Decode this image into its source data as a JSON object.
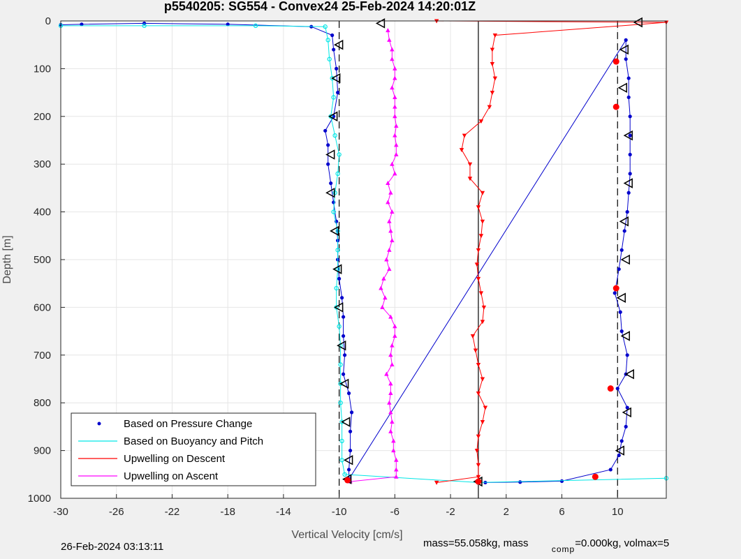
{
  "chart_data": {
    "type": "scatter",
    "title": "p5540205: SG554 - Convex24 25-Feb-2024 14:20:01Z",
    "xlabel": "Vertical Velocity [cm/s]",
    "ylabel": "Depth [m]",
    "xlim": [
      -30,
      13.5
    ],
    "ylim": [
      0,
      1000
    ],
    "y_reversed": true,
    "grid": true,
    "legend_position": "bottom-left",
    "x_ticks": [
      "-30",
      "-26",
      "-22",
      "-18",
      "-14",
      "-10",
      "-6",
      "-2",
      "2",
      "6",
      "10"
    ],
    "y_ticks": [
      "0",
      "100",
      "200",
      "300",
      "400",
      "500",
      "600",
      "700",
      "800",
      "900",
      "1000"
    ],
    "reference_lines": [
      {
        "x": -10,
        "style": "dashed",
        "color": "#000000"
      },
      {
        "x": 0,
        "style": "solid",
        "color": "#000000"
      },
      {
        "x": 10,
        "style": "dashed",
        "color": "#000000"
      }
    ],
    "series": [
      {
        "name": "Based on Pressure Change",
        "color": "#0000cc",
        "marker": "dot",
        "points": [
          [
            -30,
            8
          ],
          [
            -28.5,
            7
          ],
          [
            -24,
            5
          ],
          [
            -18,
            7
          ],
          [
            -12,
            12
          ],
          [
            -10.5,
            30
          ],
          [
            -10.4,
            60
          ],
          [
            -10.2,
            100
          ],
          [
            -10.1,
            150
          ],
          [
            -10.4,
            200
          ],
          [
            -11,
            230
          ],
          [
            -10.8,
            260
          ],
          [
            -10.8,
            300
          ],
          [
            -10.6,
            340
          ],
          [
            -10.4,
            380
          ],
          [
            -10.2,
            420
          ],
          [
            -10.1,
            460
          ],
          [
            -10.1,
            500
          ],
          [
            -10.0,
            540
          ],
          [
            -9.8,
            580
          ],
          [
            -9.7,
            620
          ],
          [
            -9.7,
            660
          ],
          [
            -9.6,
            700
          ],
          [
            -9.7,
            740
          ],
          [
            -9.3,
            780
          ],
          [
            -9.1,
            820
          ],
          [
            -9.2,
            860
          ],
          [
            -9.2,
            900
          ],
          [
            -9.3,
            940
          ],
          [
            -9.3,
            960
          ],
          [
            10.6,
            40
          ],
          [
            10.6,
            80
          ],
          [
            10.8,
            120
          ],
          [
            10.8,
            160
          ],
          [
            10.9,
            200
          ],
          [
            10.9,
            240
          ],
          [
            10.9,
            280
          ],
          [
            10.9,
            320
          ],
          [
            10.8,
            360
          ],
          [
            10.7,
            400
          ],
          [
            10.5,
            440
          ],
          [
            10.3,
            480
          ],
          [
            10.1,
            520
          ],
          [
            9.8,
            570
          ],
          [
            10.2,
            610
          ],
          [
            10.3,
            650
          ],
          [
            10.7,
            700
          ],
          [
            10.6,
            740
          ],
          [
            10.0,
            770
          ],
          [
            10.7,
            810
          ],
          [
            10.6,
            850
          ],
          [
            10.3,
            880
          ],
          [
            10.1,
            910
          ],
          [
            9.5,
            940
          ],
          [
            6.0,
            964
          ],
          [
            3.0,
            966
          ],
          [
            0.5,
            967
          ]
        ]
      },
      {
        "name": "Based on Buoyancy and Pitch",
        "color": "#00e6e6",
        "marker": "circle",
        "points": [
          [
            -30,
            10
          ],
          [
            -24,
            10
          ],
          [
            -16,
            10
          ],
          [
            -11,
            12
          ],
          [
            -10.8,
            40
          ],
          [
            -10.7,
            80
          ],
          [
            -10.5,
            120
          ],
          [
            -10.4,
            160
          ],
          [
            -10.6,
            200
          ],
          [
            -10.3,
            240
          ],
          [
            -10.0,
            280
          ],
          [
            -10.1,
            320
          ],
          [
            -10.3,
            360
          ],
          [
            -10.4,
            400
          ],
          [
            -10.1,
            440
          ],
          [
            -10.1,
            480
          ],
          [
            -10.1,
            520
          ],
          [
            -10.2,
            560
          ],
          [
            -10.2,
            600
          ],
          [
            -10.0,
            640
          ],
          [
            -9.9,
            680
          ],
          [
            -9.9,
            720
          ],
          [
            -9.9,
            760
          ],
          [
            -9.9,
            800
          ],
          [
            -9.8,
            840
          ],
          [
            -9.8,
            880
          ],
          [
            -9.8,
            920
          ],
          [
            -9.6,
            950
          ],
          [
            0,
            967
          ],
          [
            13.5,
            958
          ]
        ]
      },
      {
        "name": "Upwelling on Descent",
        "color": "#ff0000",
        "marker": "triangle-down",
        "points": [
          [
            -3,
            0
          ],
          [
            13.5,
            3
          ],
          [
            1.2,
            30
          ],
          [
            1.0,
            60
          ],
          [
            1.0,
            90
          ],
          [
            1.2,
            120
          ],
          [
            1.0,
            150
          ],
          [
            0.8,
            180
          ],
          [
            0.2,
            210
          ],
          [
            -1.0,
            240
          ],
          [
            -1.2,
            270
          ],
          [
            -0.6,
            300
          ],
          [
            -0.6,
            330
          ],
          [
            0.3,
            360
          ],
          [
            0.0,
            390
          ],
          [
            0.3,
            420
          ],
          [
            0.2,
            450
          ],
          [
            0.0,
            480
          ],
          [
            -0.1,
            510
          ],
          [
            0.0,
            540
          ],
          [
            0.2,
            570
          ],
          [
            0.4,
            600
          ],
          [
            0.3,
            630
          ],
          [
            -0.4,
            660
          ],
          [
            -0.2,
            690
          ],
          [
            0.0,
            720
          ],
          [
            0.3,
            750
          ],
          [
            0.0,
            780
          ],
          [
            0.5,
            810
          ],
          [
            0.3,
            840
          ],
          [
            0.0,
            870
          ],
          [
            -0.1,
            900
          ],
          [
            0.0,
            930
          ],
          [
            0.0,
            955
          ],
          [
            -3,
            967
          ]
        ]
      },
      {
        "name": "Upwelling on Ascent",
        "color": "#ff00ff",
        "marker": "triangle-up",
        "points": [
          [
            -6.5,
            20
          ],
          [
            -6.4,
            40
          ],
          [
            -6.2,
            60
          ],
          [
            -6.2,
            80
          ],
          [
            -6.0,
            100
          ],
          [
            -6.0,
            120
          ],
          [
            -6.2,
            140
          ],
          [
            -6.0,
            160
          ],
          [
            -6.0,
            180
          ],
          [
            -6.0,
            200
          ],
          [
            -5.9,
            220
          ],
          [
            -6.0,
            240
          ],
          [
            -5.9,
            260
          ],
          [
            -5.9,
            280
          ],
          [
            -6.2,
            300
          ],
          [
            -6.0,
            320
          ],
          [
            -6.5,
            340
          ],
          [
            -6.3,
            360
          ],
          [
            -6.5,
            380
          ],
          [
            -6.2,
            400
          ],
          [
            -6.4,
            420
          ],
          [
            -6.3,
            440
          ],
          [
            -6.2,
            460
          ],
          [
            -6.4,
            480
          ],
          [
            -6.6,
            500
          ],
          [
            -6.4,
            520
          ],
          [
            -6.8,
            540
          ],
          [
            -7.0,
            560
          ],
          [
            -6.7,
            580
          ],
          [
            -6.9,
            600
          ],
          [
            -6.3,
            620
          ],
          [
            -6.0,
            640
          ],
          [
            -6.0,
            660
          ],
          [
            -6.2,
            680
          ],
          [
            -6.3,
            700
          ],
          [
            -6.2,
            720
          ],
          [
            -6.6,
            740
          ],
          [
            -6.3,
            760
          ],
          [
            -6.3,
            780
          ],
          [
            -6.4,
            800
          ],
          [
            -6.3,
            820
          ],
          [
            -6.2,
            840
          ],
          [
            -6.3,
            860
          ],
          [
            -6.1,
            880
          ],
          [
            -6.1,
            900
          ],
          [
            -5.9,
            920
          ],
          [
            -5.9,
            940
          ],
          [
            -5.9,
            955
          ],
          [
            -9.2,
            965
          ]
        ]
      }
    ],
    "annotations": [
      {
        "type": "triangle-left",
        "color": "#000000",
        "points": [
          [
            -7.0,
            5
          ],
          [
            11.5,
            3
          ],
          [
            -10.0,
            50
          ],
          [
            -10.2,
            120
          ],
          [
            -10.4,
            200
          ],
          [
            -10.6,
            280
          ],
          [
            -10.6,
            360
          ],
          [
            -10.3,
            440
          ],
          [
            -10.1,
            520
          ],
          [
            -10.0,
            600
          ],
          [
            -9.8,
            680
          ],
          [
            -9.6,
            760
          ],
          [
            -9.5,
            840
          ],
          [
            -9.3,
            920
          ],
          [
            10.5,
            60
          ],
          [
            10.4,
            140
          ],
          [
            10.8,
            240
          ],
          [
            10.8,
            340
          ],
          [
            10.5,
            420
          ],
          [
            10.6,
            500
          ],
          [
            10.3,
            580
          ],
          [
            10.6,
            660
          ],
          [
            10.9,
            740
          ],
          [
            10.7,
            820
          ],
          [
            10.2,
            900
          ],
          [
            0,
            965
          ],
          [
            -9.4,
            960
          ]
        ]
      },
      {
        "type": "circle",
        "color": "#ff0000",
        "points": [
          [
            9.9,
            85
          ],
          [
            9.9,
            180
          ],
          [
            9.9,
            560
          ],
          [
            9.5,
            770
          ],
          [
            8.4,
            955
          ],
          [
            -9.4,
            962
          ],
          [
            0,
            965
          ]
        ]
      }
    ]
  },
  "footer": {
    "timestamp": "26-Feb-2024 03:13:11",
    "mass_text": "mass=55.058kg, mass",
    "comp_sub": "comp",
    "mass_comp_text": "=0.000kg, volmax=5"
  }
}
